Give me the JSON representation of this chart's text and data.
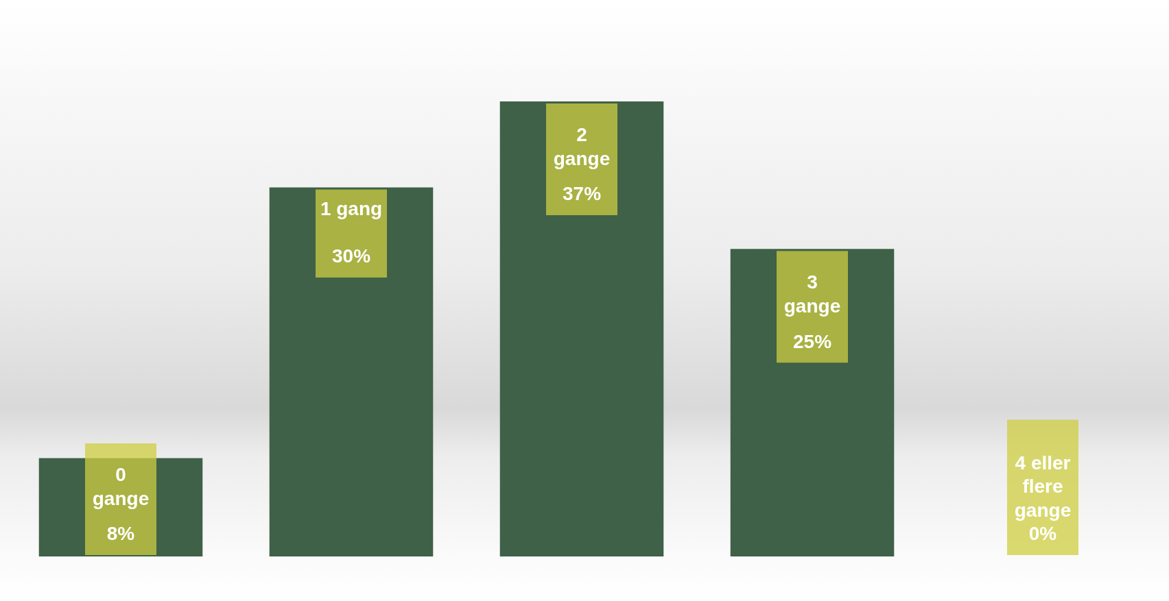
{
  "chart_data": {
    "type": "bar",
    "categories": [
      "0 gange",
      "1 gang",
      "2 gange",
      "3 gange",
      "4 eller flere gange"
    ],
    "values": [
      8,
      30,
      37,
      25,
      0
    ],
    "value_labels": [
      "8%",
      "30%",
      "37%",
      "25%",
      "0%"
    ],
    "color": "#3e6147"
  }
}
